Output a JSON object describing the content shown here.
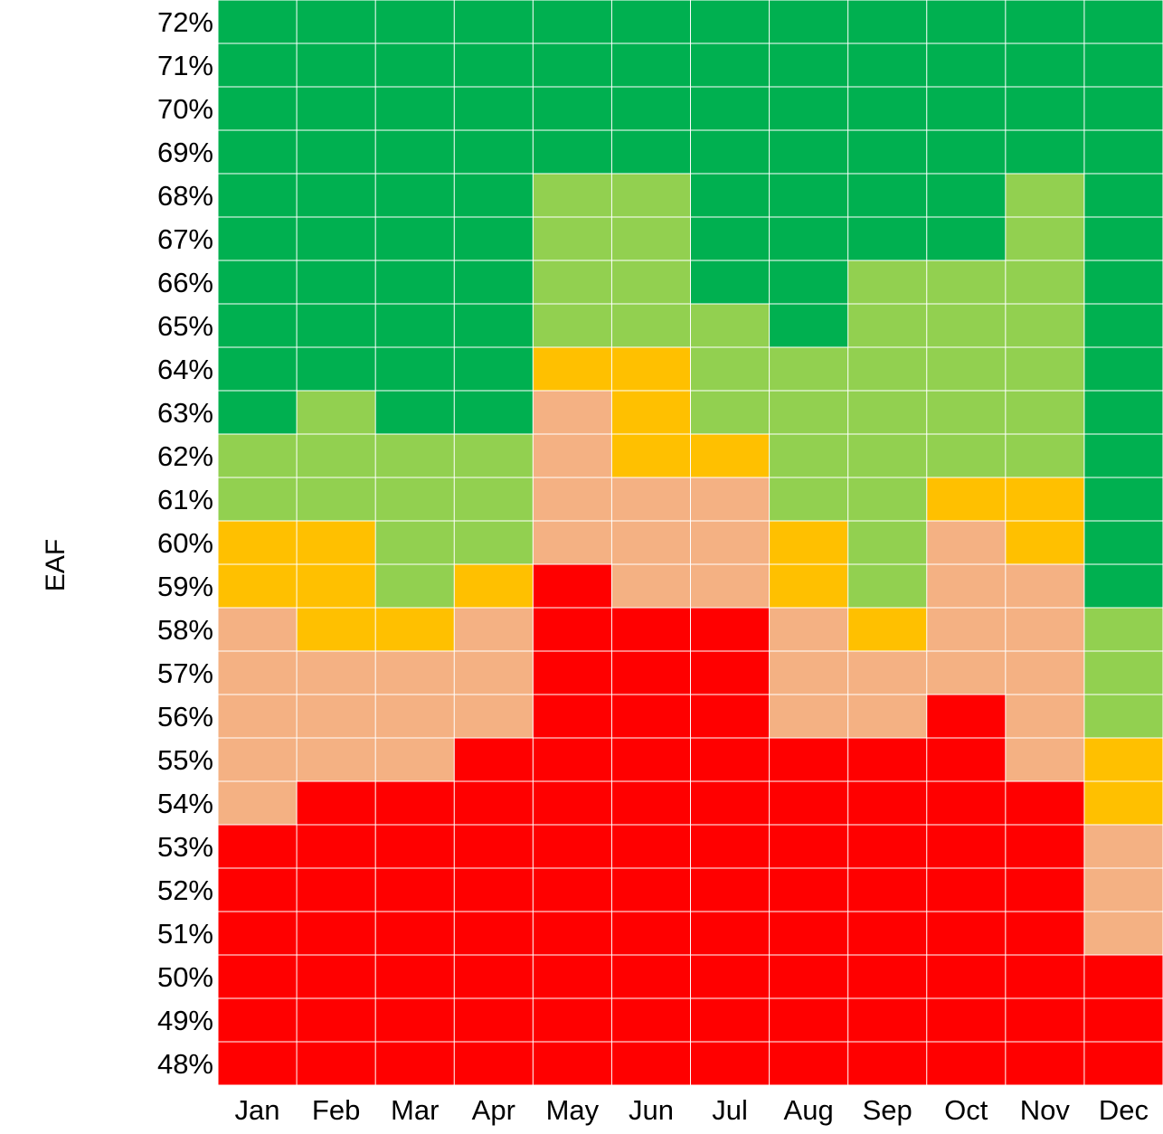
{
  "chart_data": {
    "type": "heatmap",
    "title": "",
    "xlabel": "",
    "ylabel": "EAF",
    "x_categories": [
      "Jan",
      "Feb",
      "Mar",
      "Apr",
      "May",
      "Jun",
      "Jul",
      "Aug",
      "Sep",
      "Oct",
      "Nov",
      "Dec"
    ],
    "y_categories": [
      "72%",
      "71%",
      "70%",
      "69%",
      "68%",
      "67%",
      "66%",
      "65%",
      "64%",
      "63%",
      "62%",
      "61%",
      "60%",
      "59%",
      "58%",
      "57%",
      "56%",
      "55%",
      "54%",
      "53%",
      "52%",
      "51%",
      "50%",
      "49%",
      "48%"
    ],
    "levels": {
      "4": "#00b050",
      "3": "#92d050",
      "2": "#ffc000",
      "1": "#f4b183",
      "0": "#ff0000"
    },
    "grid_color": "#ffffff",
    "values": [
      [
        4,
        4,
        4,
        4,
        4,
        4,
        4,
        4,
        4,
        4,
        4,
        4
      ],
      [
        4,
        4,
        4,
        4,
        4,
        4,
        4,
        4,
        4,
        4,
        4,
        4
      ],
      [
        4,
        4,
        4,
        4,
        4,
        4,
        4,
        4,
        4,
        4,
        4,
        4
      ],
      [
        4,
        4,
        4,
        4,
        4,
        4,
        4,
        4,
        4,
        4,
        4,
        4
      ],
      [
        4,
        4,
        4,
        4,
        3,
        3,
        4,
        4,
        4,
        4,
        3,
        4
      ],
      [
        4,
        4,
        4,
        4,
        3,
        3,
        4,
        4,
        4,
        4,
        3,
        4
      ],
      [
        4,
        4,
        4,
        4,
        3,
        3,
        4,
        4,
        3,
        3,
        3,
        4
      ],
      [
        4,
        4,
        4,
        4,
        3,
        3,
        3,
        4,
        3,
        3,
        3,
        4
      ],
      [
        4,
        4,
        4,
        4,
        2,
        2,
        3,
        3,
        3,
        3,
        3,
        4
      ],
      [
        4,
        3,
        4,
        4,
        1,
        2,
        3,
        3,
        3,
        3,
        3,
        4
      ],
      [
        3,
        3,
        3,
        3,
        1,
        2,
        2,
        3,
        3,
        3,
        3,
        4
      ],
      [
        3,
        3,
        3,
        3,
        1,
        1,
        1,
        3,
        3,
        2,
        2,
        4
      ],
      [
        2,
        2,
        3,
        3,
        1,
        1,
        1,
        2,
        3,
        1,
        2,
        4
      ],
      [
        2,
        2,
        3,
        2,
        0,
        1,
        1,
        2,
        3,
        1,
        1,
        4
      ],
      [
        1,
        2,
        2,
        1,
        0,
        0,
        0,
        1,
        2,
        1,
        1,
        3
      ],
      [
        1,
        1,
        1,
        1,
        0,
        0,
        0,
        1,
        1,
        1,
        1,
        3
      ],
      [
        1,
        1,
        1,
        1,
        0,
        0,
        0,
        1,
        1,
        0,
        1,
        3
      ],
      [
        1,
        1,
        1,
        0,
        0,
        0,
        0,
        0,
        0,
        0,
        1,
        2
      ],
      [
        1,
        0,
        0,
        0,
        0,
        0,
        0,
        0,
        0,
        0,
        0,
        2
      ],
      [
        0,
        0,
        0,
        0,
        0,
        0,
        0,
        0,
        0,
        0,
        0,
        1
      ],
      [
        0,
        0,
        0,
        0,
        0,
        0,
        0,
        0,
        0,
        0,
        0,
        1
      ],
      [
        0,
        0,
        0,
        0,
        0,
        0,
        0,
        0,
        0,
        0,
        0,
        1
      ],
      [
        0,
        0,
        0,
        0,
        0,
        0,
        0,
        0,
        0,
        0,
        0,
        0
      ],
      [
        0,
        0,
        0,
        0,
        0,
        0,
        0,
        0,
        0,
        0,
        0,
        0
      ],
      [
        0,
        0,
        0,
        0,
        0,
        0,
        0,
        0,
        0,
        0,
        0,
        0
      ]
    ]
  }
}
